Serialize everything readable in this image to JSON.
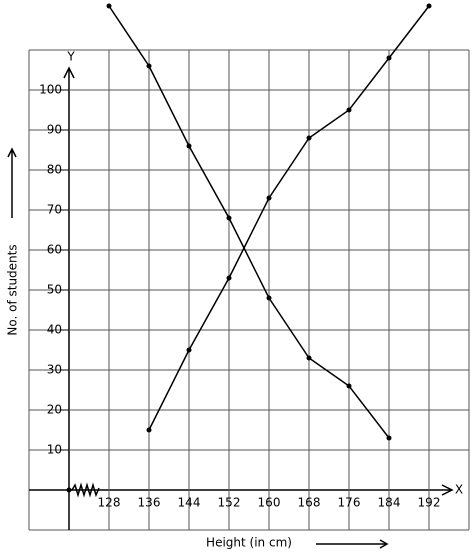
{
  "chart_data": {
    "type": "line",
    "x_label": "Height (in cm)",
    "y_label": "No. of students",
    "x_axis_name": "X",
    "y_axis_name": "Y",
    "x": [
      128,
      136,
      144,
      152,
      160,
      168,
      176,
      184,
      192
    ],
    "series": [
      {
        "color": "#000000",
        "values": [
          121,
          106,
          86,
          68,
          48,
          33,
          26,
          13,
          null
        ]
      },
      {
        "color": "#000000",
        "values": [
          null,
          15,
          35,
          53,
          73,
          88,
          95,
          108,
          121
        ]
      }
    ],
    "xlim": [
      112,
      200
    ],
    "ylim": [
      -10,
      110
    ],
    "xticks": [
      128,
      136,
      144,
      152,
      160,
      168,
      176,
      184,
      192
    ],
    "yticks": [
      10,
      20,
      30,
      40,
      50,
      60,
      70,
      80,
      90,
      100
    ],
    "grid": true
  }
}
